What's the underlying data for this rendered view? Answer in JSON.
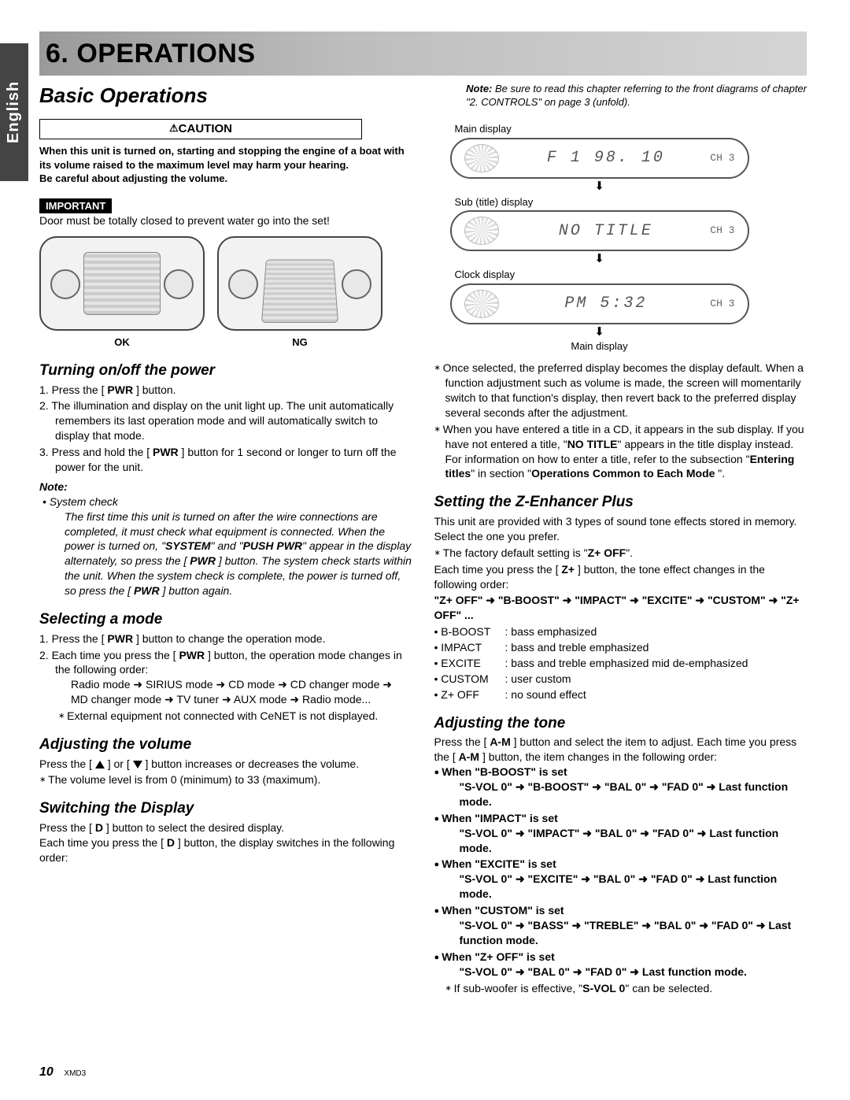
{
  "side_tab": "English",
  "chapter": {
    "number": "6.",
    "title": "OPERATIONS"
  },
  "section_title": "Basic Operations",
  "top_note": {
    "lead": "Note:",
    "text": " Be sure to read this chapter referring to the front diagrams of chapter ",
    "ref": "\"2. CONTROLS\"",
    "tail": " on page 3 (unfold)."
  },
  "caution": {
    "header": "CAUTION",
    "body1": "When this unit is turned on, starting and stopping the engine of a boat with its volume raised to the maximum level may harm your hearing.",
    "body2": "Be careful about adjusting the volume."
  },
  "important": {
    "tag": "IMPORTANT",
    "text": "Door must be totally closed to prevent water go into the set!"
  },
  "device": {
    "ok": "OK",
    "ng": "NG"
  },
  "power": {
    "title": "Turning on/off the power",
    "s1a": "Press the [ ",
    "s1b": "PWR",
    "s1c": " ] button.",
    "s2": "The illumination and display on the unit light up. The unit automatically remembers its last operation mode and will automatically switch to display that mode.",
    "s3a": "Press and hold the [ ",
    "s3b": "PWR",
    "s3c": " ] button for 1 second or longer to turn off the power for the unit.",
    "note_hd": "Note:",
    "note_t": "System check",
    "note_body_a": "The first time this unit is turned on after the wire connections are completed, it must check what equipment is connected. When the power is turned on, \"",
    "note_body_b": "SYSTEM",
    "note_body_c": "\" and \"",
    "note_body_d": "PUSH PWR",
    "note_body_e": "\" appear in the display alternately, so press the [ ",
    "note_body_f": "PWR",
    "note_body_g": " ] button. The system check starts within the unit. When the system check is complete, the power is turned off, so press the [ ",
    "note_body_h": "PWR",
    "note_body_i": " ] button again."
  },
  "mode": {
    "title": "Selecting a mode",
    "s1a": "Press the [ ",
    "s1b": "PWR",
    "s1c": " ] button to change the operation mode.",
    "s2a": "Each time you press the [ ",
    "s2b": "PWR",
    "s2c": " ] button, the operation mode changes in the following order:",
    "seq": "Radio mode ➜ SIRIUS mode ➜ CD mode ➜ CD changer mode ➜ MD changer mode ➜ TV tuner ➜ AUX mode ➜ Radio mode...",
    "ast": "External equipment not connected with CeNET is not displayed."
  },
  "volume": {
    "title": "Adjusting the volume",
    "p1a": "Press the [ ",
    "p1b": " ] or [ ",
    "p1c": " ] button increases or decreases the volume.",
    "ast": "The volume level is from 0 (minimum) to 33 (maximum)."
  },
  "display": {
    "title": "Switching the Display",
    "p1a": "Press the [ ",
    "p1b": "D",
    "p1c": " ] button to select the desired display.",
    "p2a": "Each time you press the [ ",
    "p2b": "D",
    "p2c": " ] button, the display switches in the following order:"
  },
  "lcd": {
    "l1": "Main display",
    "d1": "F 1   98. 10",
    "d1ch": "CH 3",
    "l2": "Sub (title) display",
    "d2": "NO  TITLE",
    "d2ch": "CH 3",
    "l3": "Clock display",
    "d3": "PM     5:32",
    "d3ch": "CH 3",
    "l4": "Main display"
  },
  "display_notes": {
    "n1": "Once selected, the preferred display becomes the display default. When a function adjustment such as volume is made, the screen will momentarily switch to that function's display, then revert back to the preferred display several seconds after the adjustment.",
    "n2a": "When you have entered a title in a CD, it appears in the sub display. If you have not entered a title, \"",
    "n2b": "NO TITLE",
    "n2c": "\" appears in the title display instead. For information on how to enter a title, refer to the subsection \"",
    "n2d": "Entering titles",
    "n2e": "\" in section \"",
    "n2f": "Operations Common to Each Mode",
    "n2g": " \"."
  },
  "zenh": {
    "title": "Setting the Z-Enhancer Plus",
    "p1": "This unit are provided with 3 types of sound tone effects stored in memory. Select the one you prefer.",
    "ast1a": "The factory default setting is \"",
    "ast1b": "Z+ OFF",
    "ast1c": "\".",
    "p2a": "Each time you press the [ ",
    "p2b": "Z+",
    "p2c": " ] button, the tone effect changes in the following order:",
    "seq": "\"Z+ OFF\" ➜ \"B-BOOST\" ➜ \"IMPACT\" ➜ \"EXCITE\" ➜ \"CUSTOM\" ➜ \"Z+ OFF\" ...",
    "modes": [
      {
        "k": "B-BOOST",
        "v": ": bass emphasized"
      },
      {
        "k": "IMPACT",
        "v": ": bass and treble emphasized"
      },
      {
        "k": "EXCITE",
        "v": ": bass and treble emphasized mid de-emphasized"
      },
      {
        "k": "CUSTOM",
        "v": ": user custom"
      },
      {
        "k": "Z+ OFF",
        "v": ": no sound effect"
      }
    ]
  },
  "tone": {
    "title": "Adjusting the tone",
    "p1a": "Press the [ ",
    "p1b": "A-M",
    "p1c": " ] button and select the item to adjust. Each time you press the [ ",
    "p1d": "A-M",
    "p1e": " ] button, the item changes in the following order:",
    "items": [
      {
        "h": "When \"B-BOOST\" is set",
        "s": "\"S-VOL 0\" ➜ \"B-BOOST\" ➜ \"BAL 0\" ➜ \"FAD 0\" ➜ Last function mode."
      },
      {
        "h": "When \"IMPACT\" is set",
        "s": "\"S-VOL 0\" ➜ \"IMPACT\" ➜ \"BAL 0\" ➜ \"FAD 0\" ➜ Last function mode."
      },
      {
        "h": "When \"EXCITE\" is set",
        "s": "\"S-VOL 0\" ➜ \"EXCITE\" ➜ \"BAL 0\" ➜ \"FAD 0\" ➜ Last function mode."
      },
      {
        "h": "When \"CUSTOM\" is set",
        "s": "\"S-VOL 0\" ➜ \"BASS\" ➜ \"TREBLE\" ➜ \"BAL 0\" ➜ \"FAD 0\" ➜ Last function mode."
      },
      {
        "h": "When \"Z+ OFF\" is set",
        "s": "\"S-VOL 0\" ➜ \"BAL 0\" ➜ \"FAD 0\" ➜ Last function mode."
      }
    ],
    "ast_a": "If sub-woofer is effective, \"",
    "ast_b": "S-VOL 0",
    "ast_c": "\" can be selected."
  },
  "footer": {
    "page": "10",
    "model": "XMD3"
  }
}
